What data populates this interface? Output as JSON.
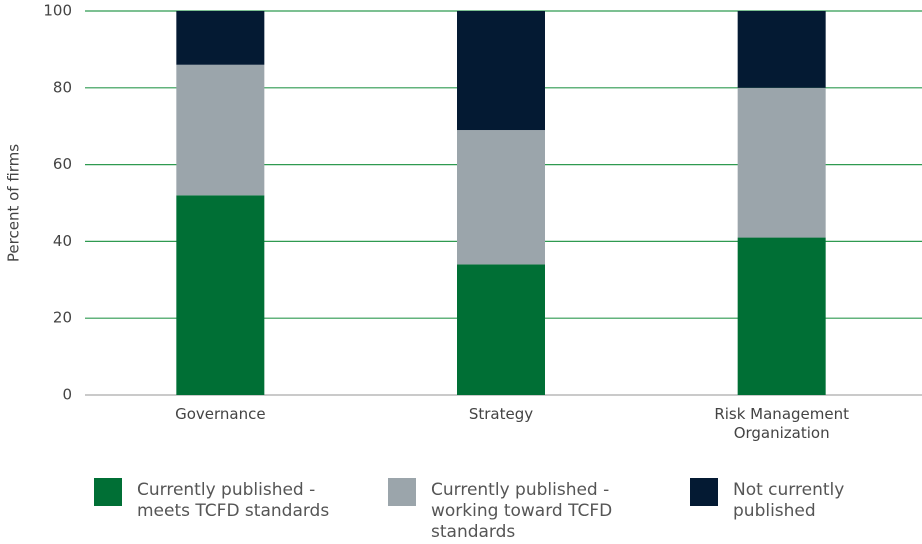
{
  "chart_data": {
    "type": "stacked_bar",
    "y_label": "Percent of firms",
    "categories": [
      "Governance",
      "Strategy",
      "Risk Management Organization"
    ],
    "series": [
      {
        "name": "Currently published - meets TCFD standards",
        "color": "#006f35",
        "values": [
          52,
          34,
          41
        ]
      },
      {
        "name": "Currently published - working toward TCFD standards",
        "color": "#9ba5ab",
        "values": [
          34,
          35,
          39
        ]
      },
      {
        "name": "Not currently published",
        "color": "#041a33",
        "values": [
          14,
          31,
          20
        ]
      }
    ],
    "ylim": [
      0,
      100
    ],
    "yticks": [
      0,
      20,
      40,
      60,
      80,
      100
    ],
    "grid": true,
    "legend": "bottom"
  }
}
